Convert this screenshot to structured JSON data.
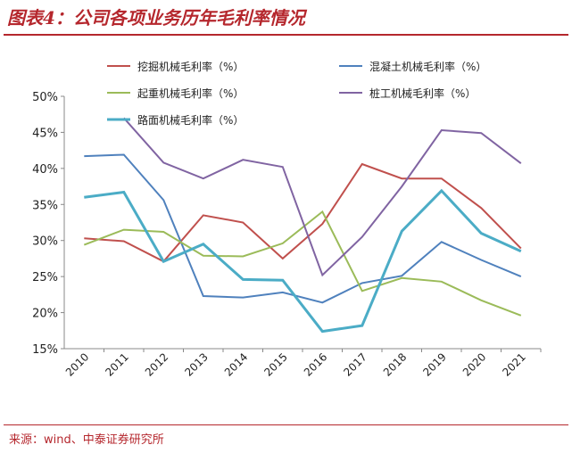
{
  "header": {
    "title": "图表4：公司各项业务历年毛利率情况"
  },
  "footer": {
    "source": "来源：wind、中泰证券研究所"
  },
  "chart_data": {
    "type": "line",
    "title": "",
    "xlabel": "",
    "ylabel": "",
    "categories": [
      "2010",
      "2011",
      "2012",
      "2013",
      "2014",
      "2015",
      "2016",
      "2017",
      "2018",
      "2019",
      "2020",
      "2021"
    ],
    "ylim": [
      15,
      50
    ],
    "yticks": [
      "15%",
      "20%",
      "25%",
      "30%",
      "35%",
      "40%",
      "45%",
      "50%"
    ],
    "ytick_values": [
      15,
      20,
      25,
      30,
      35,
      40,
      45,
      50
    ],
    "grid": false,
    "legend_position": "top",
    "series": [
      {
        "name": "挖掘机械毛利率（%）",
        "color": "#c0504d",
        "values": [
          30.3,
          29.9,
          27.1,
          33.5,
          32.5,
          27.5,
          32.3,
          40.6,
          38.6,
          38.6,
          34.5,
          28.9
        ]
      },
      {
        "name": "混凝土机械毛利率（%）",
        "color": "#4f81bd",
        "values": [
          41.7,
          41.9,
          35.6,
          22.3,
          22.1,
          22.8,
          21.4,
          24.1,
          25.1,
          29.8,
          27.3,
          25.0
        ]
      },
      {
        "name": "起重机械毛利率（%）",
        "color": "#9bbb59",
        "values": [
          29.4,
          31.5,
          31.2,
          27.9,
          27.8,
          29.6,
          34.0,
          23.0,
          24.8,
          24.3,
          21.7,
          19.6
        ]
      },
      {
        "name": "桩工机械毛利率（%）",
        "color": "#8064a2",
        "values": [
          null,
          47.0,
          40.8,
          38.6,
          41.2,
          40.2,
          25.2,
          30.5,
          37.5,
          45.3,
          44.9,
          40.7
        ]
      },
      {
        "name": "路面机械毛利率（%）",
        "color": "#4bacc6",
        "values": [
          36.0,
          36.7,
          27.1,
          29.5,
          24.6,
          24.5,
          17.4,
          18.2,
          31.3,
          36.9,
          31.0,
          28.5
        ]
      }
    ]
  }
}
